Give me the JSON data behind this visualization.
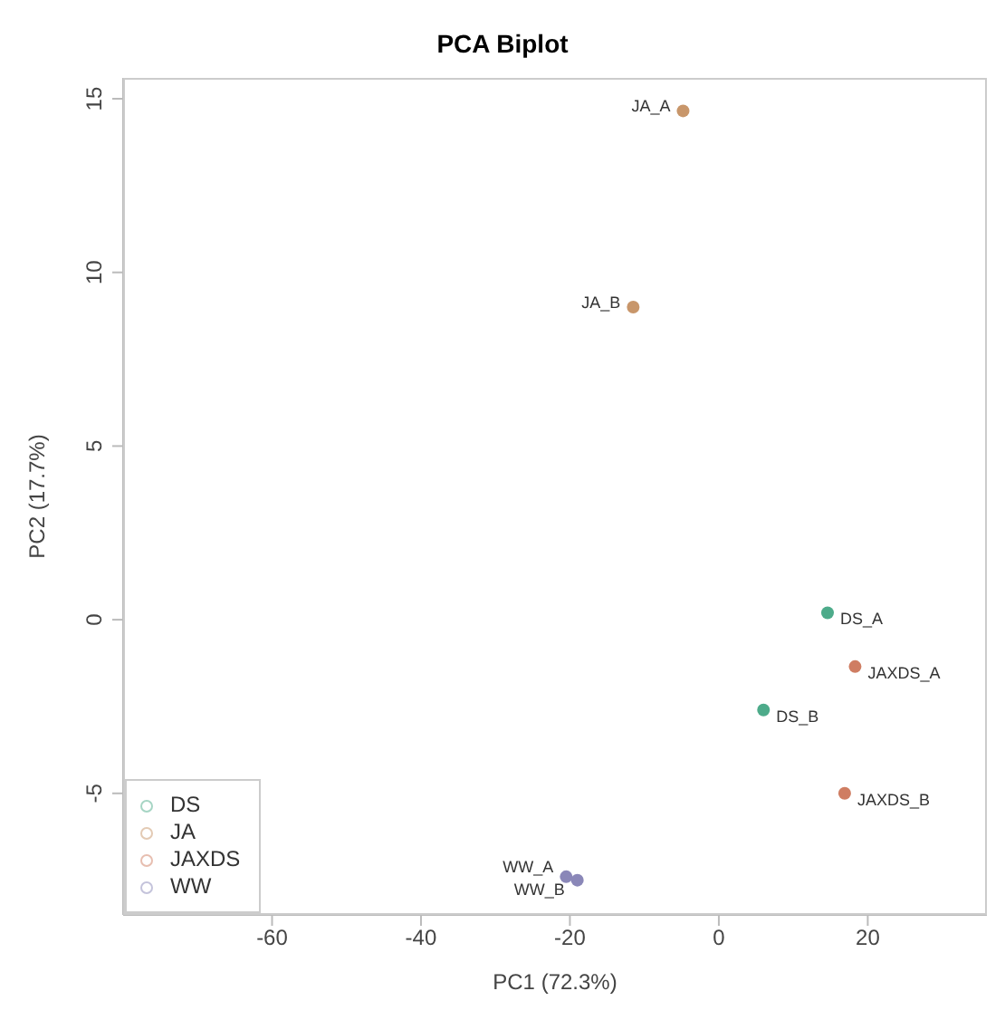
{
  "chart_data": {
    "type": "scatter",
    "title": "PCA Biplot",
    "xlabel": "PC1 (72.3%)",
    "ylabel": "PC2 (17.7%)",
    "xlim": [
      -80,
      36
    ],
    "ylim": [
      -8.5,
      15.6
    ],
    "xticks": [
      -60,
      -40,
      -20,
      0,
      20
    ],
    "yticks": [
      -5,
      0,
      5,
      10,
      15
    ],
    "grid": false,
    "legend": "bottom left",
    "marker": "circle",
    "series": [
      {
        "name": "DS",
        "color": "#4dab8a",
        "x": [
          14.6,
          6.0
        ],
        "values": [
          0.2,
          -2.6
        ]
      },
      {
        "name": "JA",
        "color": "#c8966a",
        "x": [
          -4.8,
          -11.5
        ],
        "values": [
          14.65,
          9.0
        ]
      },
      {
        "name": "JAXDS",
        "color": "#cf7d62",
        "x": [
          18.3,
          16.9
        ],
        "values": [
          -1.35,
          -5.0
        ]
      },
      {
        "name": "WW",
        "color": "#8a87b8",
        "x": [
          -20.5,
          -19.0
        ],
        "values": [
          -7.4,
          -7.5
        ]
      }
    ],
    "annotations": [
      {
        "text": "DS_A",
        "x": 14.6,
        "y": 0.2
      },
      {
        "text": "DS_B",
        "x": 6.0,
        "y": -2.6
      },
      {
        "text": "JA_A",
        "x": -4.8,
        "y": 14.65
      },
      {
        "text": "JA_B",
        "x": -11.5,
        "y": 9.0
      },
      {
        "text": "JAXDS_A",
        "x": 18.3,
        "y": -1.35
      },
      {
        "text": "JAXDS_B",
        "x": 16.9,
        "y": -5.0
      },
      {
        "text": "WW_A",
        "x": -20.5,
        "y": -7.4
      },
      {
        "text": "WW_B",
        "x": -19.0,
        "y": -7.5
      }
    ]
  }
}
